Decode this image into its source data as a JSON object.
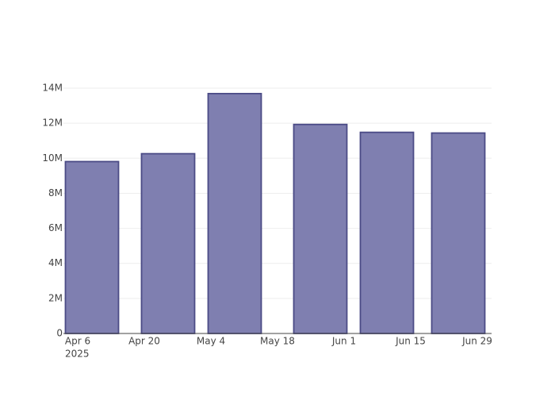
{
  "chart_data": {
    "type": "bar",
    "x": [
      "2025-04-09",
      "2025-04-25",
      "2025-05-09",
      "2025-05-27",
      "2025-06-10",
      "2025-06-25"
    ],
    "values": [
      9810000,
      10260000,
      13690000,
      11930000,
      11480000,
      11440000
    ],
    "color": "#7f7fb0",
    "edge_color": "#4b4b86",
    "xlim": [
      "2025-04-03",
      "2025-07-02"
    ],
    "xticks": [
      {
        "value": "2025-04-06",
        "label": "Apr 6"
      },
      {
        "value": "2025-04-20",
        "label": "Apr 20"
      },
      {
        "value": "2025-05-04",
        "label": "May 4"
      },
      {
        "value": "2025-05-18",
        "label": "May 18"
      },
      {
        "value": "2025-06-01",
        "label": "Jun 1"
      },
      {
        "value": "2025-06-15",
        "label": "Jun 15"
      },
      {
        "value": "2025-06-29",
        "label": "Jun 29"
      }
    ],
    "x_year_label": "2025",
    "ylim": [
      0,
      14500000
    ],
    "yticks": [
      0,
      {
        "value": 2000000,
        "label": "2M"
      },
      {
        "value": 4000000,
        "label": "4M"
      },
      {
        "value": 6000000,
        "label": "6M"
      },
      {
        "value": 8000000,
        "label": "8M"
      },
      {
        "value": 10000000,
        "label": "10M"
      },
      {
        "value": 12000000,
        "label": "12M"
      },
      {
        "value": 14000000,
        "label": "14M"
      }
    ],
    "grid": true
  }
}
